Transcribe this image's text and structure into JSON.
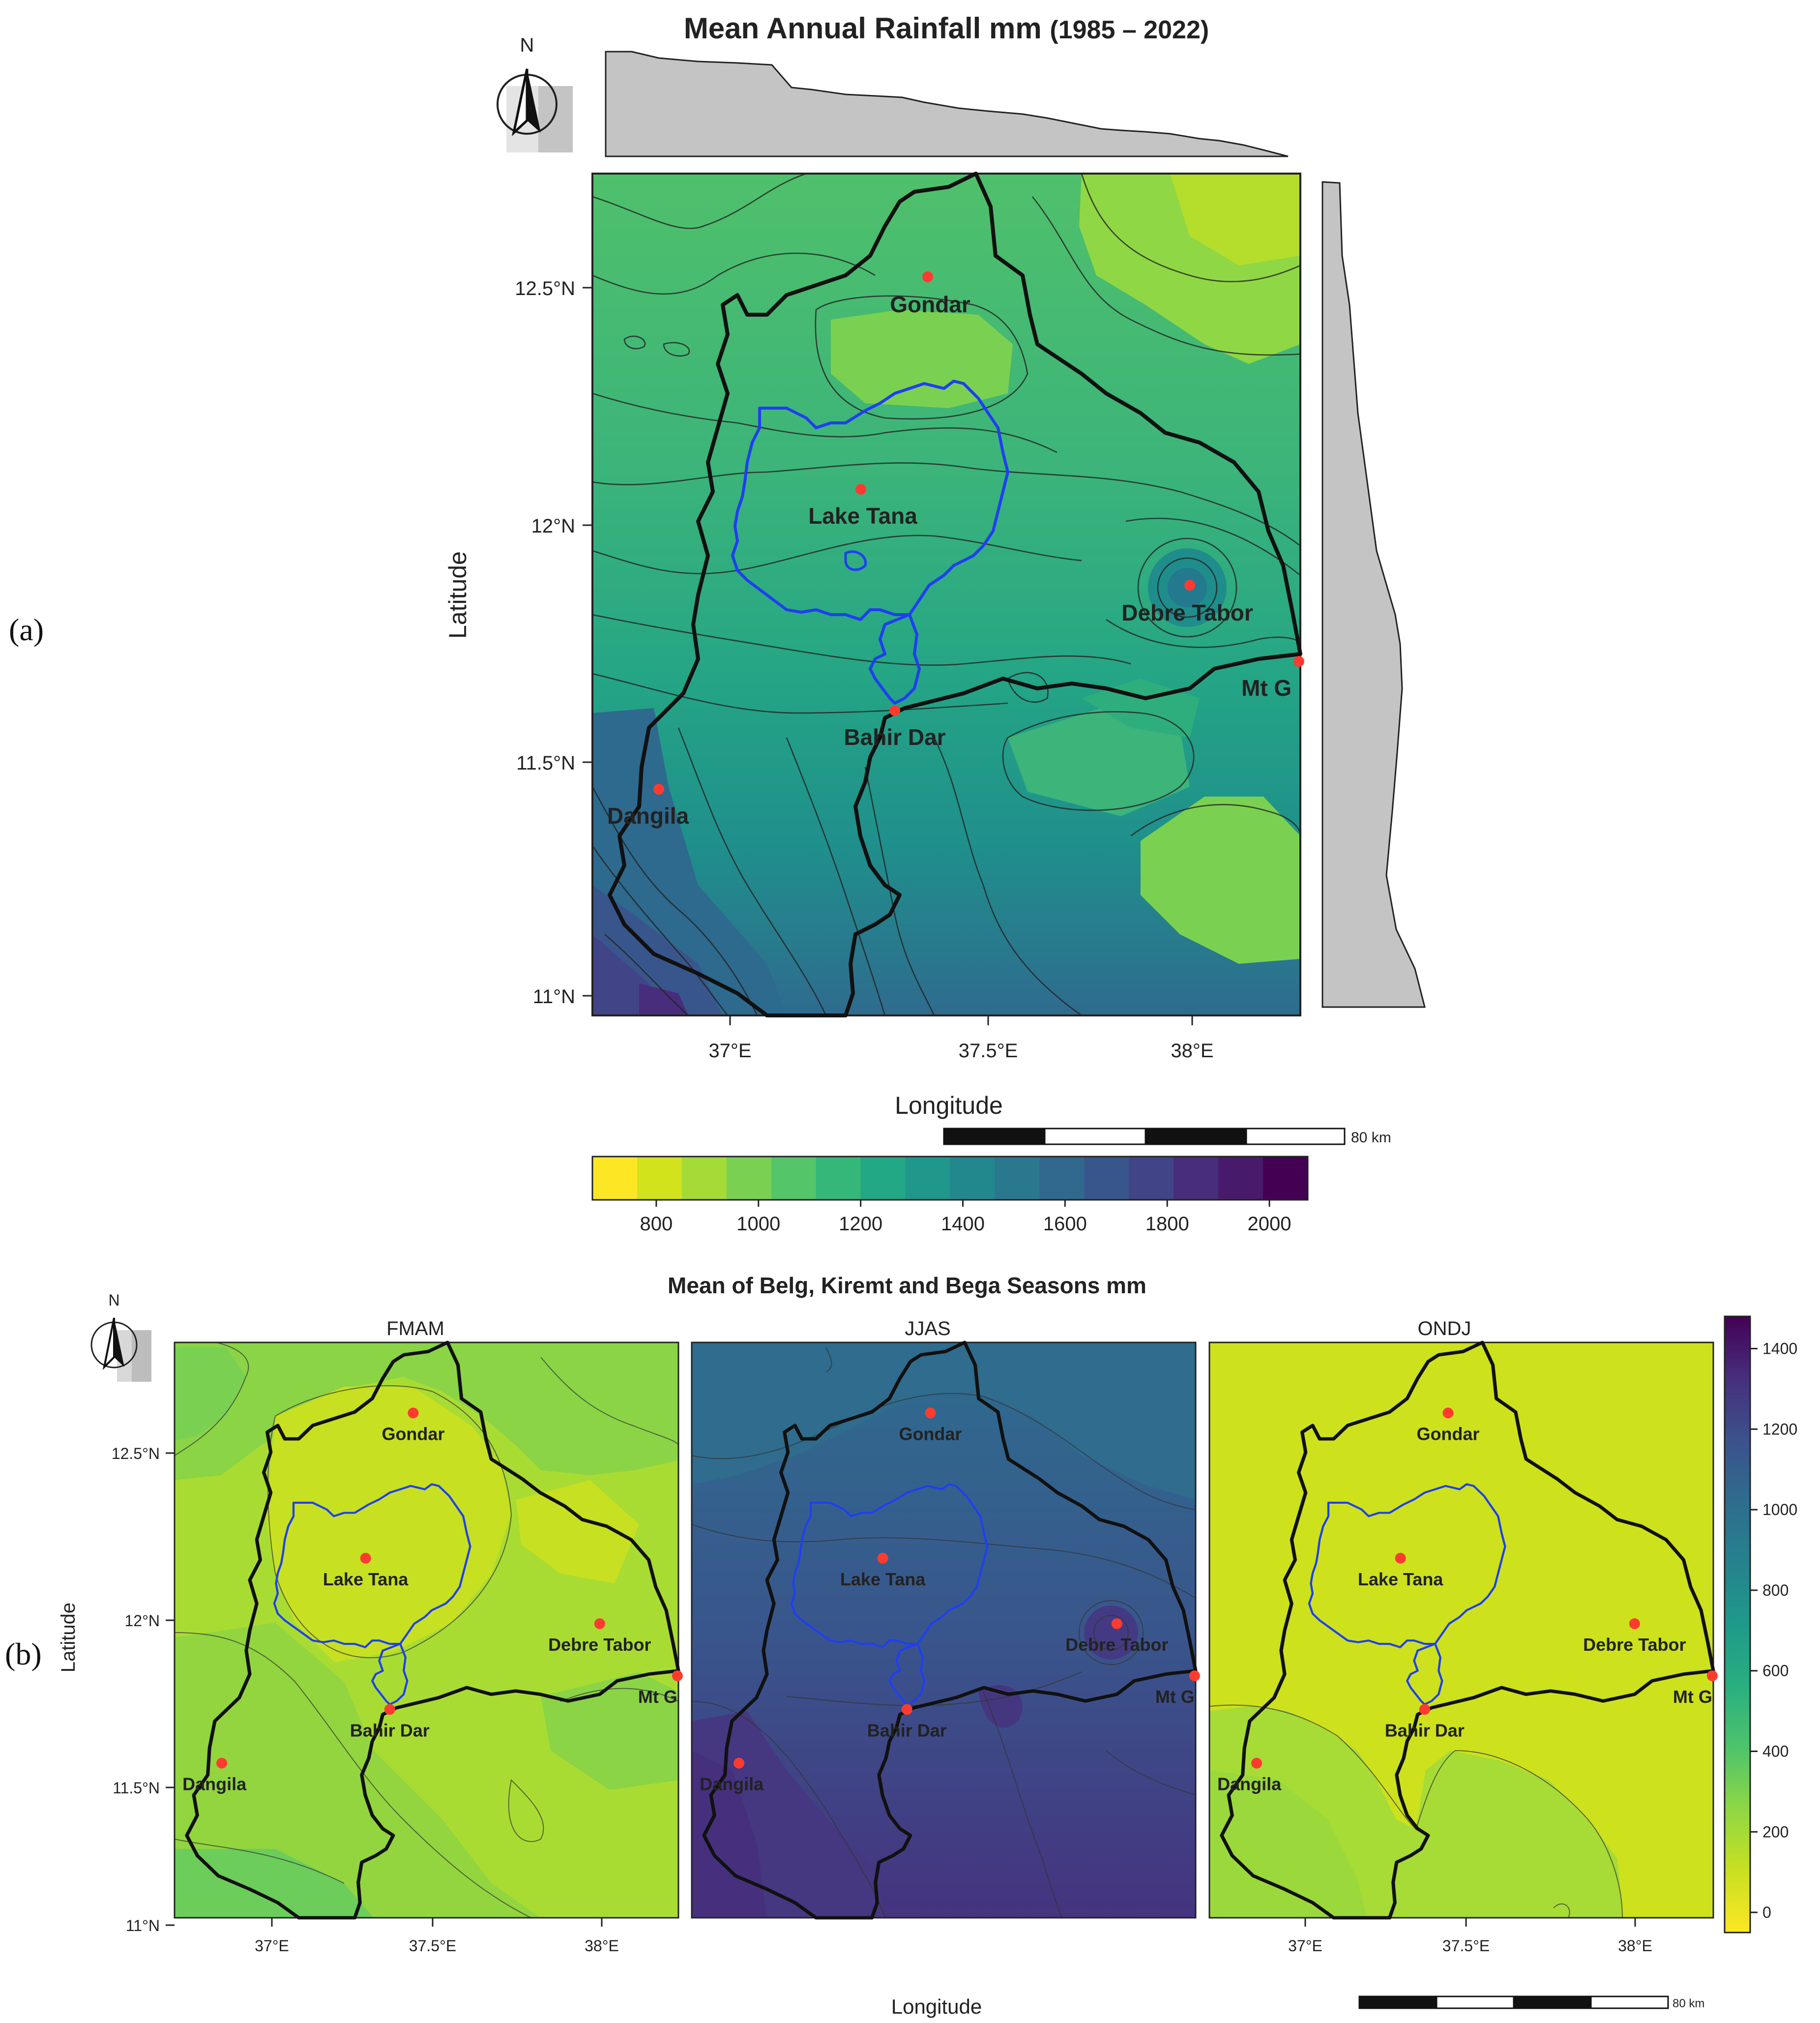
{
  "panel_labels": {
    "a": "(a)",
    "b": "(b)"
  },
  "map_a": {
    "title_main": "Mean Annual Rainfall mm",
    "title_years": "(1985 – 2022)",
    "north_label": "N",
    "x_label": "Longitude",
    "y_label": "Latitude",
    "x_ticks": [
      "37°E",
      "37.5°E",
      "38°E"
    ],
    "y_ticks": [
      "12.5°N",
      "12°N",
      "11.5°N",
      "11°N"
    ],
    "scale_label": "80 km",
    "colorbar_ticks": [
      "800",
      "1000",
      "1200",
      "1400",
      "1600",
      "1800",
      "2000"
    ],
    "colors": [
      "#fde725",
      "#d2e21b",
      "#a5db36",
      "#7ad151",
      "#54c568",
      "#35b779",
      "#22a884",
      "#1f988b",
      "#23888e",
      "#2a788e",
      "#31688e",
      "#39568c",
      "#414487",
      "#472d7b",
      "#481a6c",
      "#440154"
    ],
    "places": [
      "Gondar",
      "Lake Tana",
      "Debre Tabor",
      "Mt G",
      "Bahir Dar",
      "Dangila"
    ]
  },
  "map_b": {
    "title": "Mean of Belg, Kiremt and Bega Seasons mm",
    "north_label": "N",
    "x_label": "Longitude",
    "y_label": "Latitude",
    "panels": [
      "FMAM",
      "JJAS",
      "ONDJ"
    ],
    "x_ticks": [
      "37°E",
      "37.5°E",
      "38°E"
    ],
    "y_ticks": [
      "12.5°N",
      "12°N",
      "11.5°N",
      "11°N"
    ],
    "scale_label": "80 km",
    "colorbar_ticks": [
      "1400",
      "1200",
      "1000",
      "800",
      "600",
      "400",
      "200",
      "0"
    ],
    "places": [
      "Gondar",
      "Lake Tana",
      "Debre Tabor",
      "Mt G",
      "Bahir Dar",
      "Dangila"
    ]
  }
}
